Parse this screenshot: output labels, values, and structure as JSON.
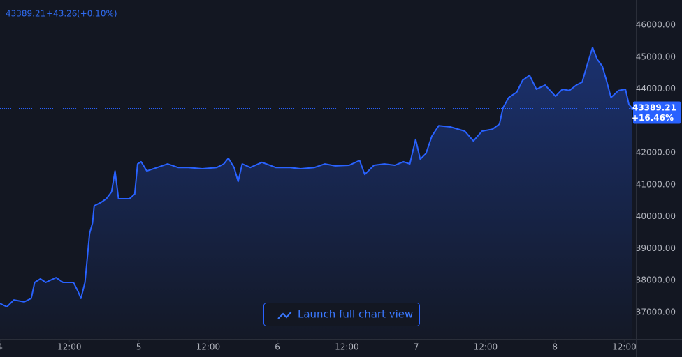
{
  "chart_data": {
    "type": "area",
    "header": {
      "change": "+43.26",
      "change_percent": "(+0.10%)"
    },
    "last": {
      "value": 43389.21,
      "change_label": "+16.46%"
    },
    "button": "Launch full chart view",
    "x": [
      0,
      1.2,
      2.4,
      4.2,
      5.4,
      6,
      7,
      7.9,
      9.7,
      10.9,
      12.7,
      13.5,
      14,
      14.7,
      15.1,
      15.5,
      16,
      16.3,
      17.5,
      18.4,
      19.3,
      19.9,
      20.5,
      22.4,
      23.3,
      23.8,
      24.4,
      25.4,
      27.2,
      29,
      30.8,
      32.6,
      35,
      37.5,
      38.7,
      39.5,
      40.5,
      41.2,
      41.9,
      43.3,
      45.3,
      47.7,
      50.2,
      52,
      54.4,
      56.2,
      58,
      60.4,
      62.2,
      63.1,
      64.7,
      66.5,
      68.3,
      69.8,
      70.9,
      71.9,
      72.7,
      73.7,
      74.7,
      75.9,
      77.9,
      80.4,
      81.9,
      83.4,
      85.2,
      86.4,
      87,
      88,
      89.4,
      90.4,
      91.6,
      92.8,
      94.3,
      96.1,
      97.3,
      98.5,
      99.7,
      100.7,
      101.5,
      102.5,
      103.3,
      104.2,
      104.9,
      105.7,
      107,
      108.2,
      108.8,
      109.4
    ],
    "series": [
      {
        "color": "#2962ff",
        "values": [
          37280,
          37175,
          37390,
          37330,
          37440,
          37940,
          38050,
          37940,
          38090,
          37940,
          37940,
          37655,
          37440,
          37940,
          38700,
          39470,
          39800,
          40340,
          40450,
          40560,
          40780,
          41430,
          40560,
          40560,
          40710,
          41650,
          41720,
          41430,
          41540,
          41650,
          41540,
          41540,
          41500,
          41540,
          41650,
          41830,
          41540,
          41100,
          41650,
          41540,
          41700,
          41540,
          41540,
          41500,
          41540,
          41650,
          41590,
          41610,
          41760,
          41320,
          41610,
          41650,
          41610,
          41720,
          41650,
          42420,
          41800,
          41980,
          42520,
          42850,
          42810,
          42680,
          42370,
          42680,
          42740,
          42900,
          43400,
          43730,
          43900,
          44270,
          44430,
          43990,
          44120,
          43770,
          43990,
          43950,
          44120,
          44210,
          44710,
          45300,
          44930,
          44710,
          44270,
          43730,
          43950,
          43990,
          43510,
          43389.21
        ]
      }
    ],
    "xlim": [
      0,
      110
    ],
    "xticks": [
      {
        "value": 0,
        "label": "4"
      },
      {
        "value": 12,
        "label": "12:00"
      },
      {
        "value": 24,
        "label": "5"
      },
      {
        "value": 36,
        "label": "12:00"
      },
      {
        "value": 48,
        "label": "6"
      },
      {
        "value": 60,
        "label": "12:00"
      },
      {
        "value": 72,
        "label": "7"
      },
      {
        "value": 84,
        "label": "12:00"
      },
      {
        "value": 96,
        "label": "8"
      },
      {
        "value": 108,
        "label": "12:00"
      }
    ],
    "ylim": [
      36170,
      46786
    ],
    "yticks": [
      {
        "value": 37000,
        "label": "37000.00"
      },
      {
        "value": 38000,
        "label": "38000.00"
      },
      {
        "value": 39000,
        "label": "39000.00"
      },
      {
        "value": 40000,
        "label": "40000.00"
      },
      {
        "value": 41000,
        "label": "41000.00"
      },
      {
        "value": 42000,
        "label": "42000.00"
      },
      {
        "value": 43000,
        "label": "43000.00"
      },
      {
        "value": 44000,
        "label": "44000.00"
      },
      {
        "value": 45000,
        "label": "45000.00"
      },
      {
        "value": 46000,
        "label": "46000.00"
      }
    ]
  }
}
